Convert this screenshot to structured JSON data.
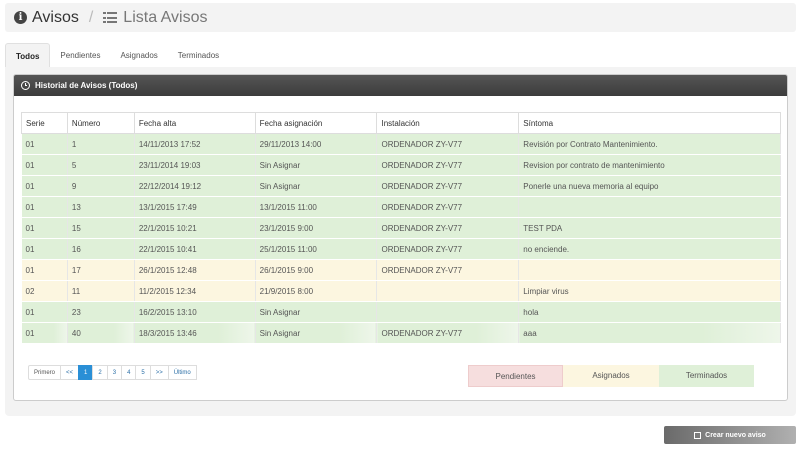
{
  "breadcrumb": {
    "root": "Avisos",
    "separator": "/",
    "current": "Lista Avisos"
  },
  "tabs": [
    {
      "label": "Todos",
      "active": true
    },
    {
      "label": "Pendientes",
      "active": false
    },
    {
      "label": "Asignados",
      "active": false
    },
    {
      "label": "Terminados",
      "active": false
    }
  ],
  "panel": {
    "title": "Historial de Avisos (Todos)"
  },
  "table": {
    "headers": [
      "Serie",
      "Número",
      "Fecha alta",
      "Fecha asignación",
      "Instalación",
      "Síntoma"
    ],
    "rows": [
      [
        "01",
        "1",
        "14/11/2013 17:52",
        "29/11/2013 14:00",
        "ORDENADOR ZY-V77",
        "Revisión por Contrato Mantenimiento."
      ],
      [
        "01",
        "5",
        "23/11/2014 19:03",
        "Sin Asignar",
        "ORDENADOR ZY-V77",
        "Revision por contrato de mantenimiento"
      ],
      [
        "01",
        "9",
        "22/12/2014 19:12",
        "Sin Asignar",
        "ORDENADOR ZY-V77",
        "Ponerle una nueva memoria al equipo"
      ],
      [
        "01",
        "13",
        "13/1/2015 17:49",
        "13/1/2015 11:00",
        "ORDENADOR ZY-V77",
        ""
      ],
      [
        "01",
        "15",
        "22/1/2015 10:21",
        "23/1/2015 9:00",
        "ORDENADOR ZY-V77",
        "TEST PDA"
      ],
      [
        "01",
        "16",
        "22/1/2015 10:41",
        "25/1/2015 11:00",
        "ORDENADOR ZY-V77",
        "no enciende."
      ],
      [
        "01",
        "17",
        "26/1/2015 12:48",
        "26/1/2015 9:00",
        "ORDENADOR ZY-V77",
        ""
      ],
      [
        "02",
        "11",
        "11/2/2015 12:34",
        "21/9/2015 8:00",
        "",
        "Limpiar virus"
      ],
      [
        "01",
        "23",
        "16/2/2015 13:10",
        "Sin Asignar",
        "",
        "hola"
      ],
      [
        "01",
        "40",
        "18/3/2015 13:46",
        "Sin Asignar",
        "ORDENADOR ZY-V77",
        "aaa"
      ]
    ],
    "row_status": [
      "terminado",
      "terminado",
      "terminado",
      "terminado",
      "terminado",
      "terminado",
      "asignado",
      "asignado",
      "terminado",
      "terminado"
    ]
  },
  "pagination": {
    "first": "Primero",
    "prev": "<<",
    "pages": [
      "1",
      "2",
      "3",
      "4",
      "5"
    ],
    "current": "1",
    "next": ">>",
    "last": "Último"
  },
  "legend": {
    "pendientes": "Pendientes",
    "asignados": "Asignados",
    "terminados": "Terminados"
  },
  "colors": {
    "pendiente": "#f6dede",
    "asignado": "#fcf6e0",
    "terminado": "#dff0d8",
    "panel_header": "#444444",
    "active_page": "#2a8fd6"
  },
  "actions": {
    "new_button": "Crear nuevo aviso"
  },
  "icons": {
    "info": "info-circle-icon",
    "list": "list-icon",
    "history": "clock-icon",
    "edit": "edit-icon"
  }
}
